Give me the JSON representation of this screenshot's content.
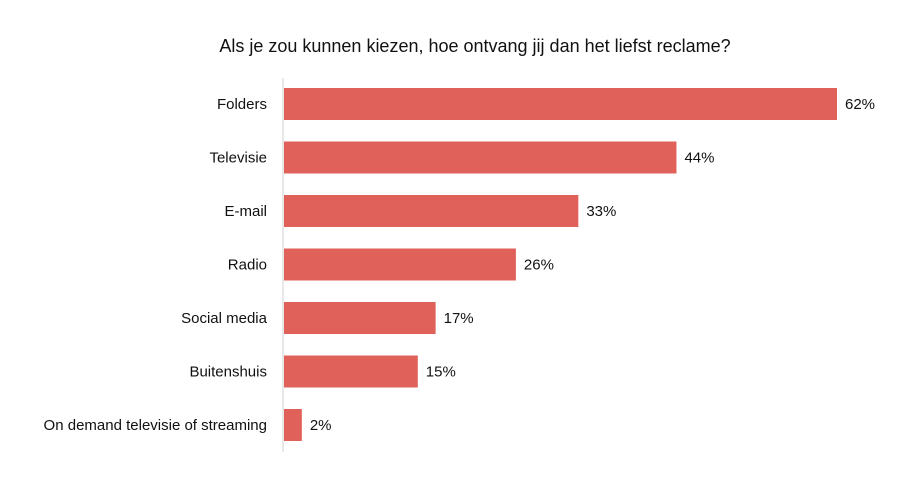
{
  "chart_data": {
    "type": "bar",
    "orientation": "horizontal",
    "title": "Als je zou kunnen kiezen, hoe ontvang jij dan het liefst reclame?",
    "categories": [
      "Folders",
      "Televisie",
      "E-mail",
      "Radio",
      "Social media",
      "Buitenshuis",
      "On demand televisie of streaming"
    ],
    "values": [
      62,
      44,
      33,
      26,
      17,
      15,
      2
    ],
    "value_labels": [
      "62%",
      "44%",
      "33%",
      "26%",
      "17%",
      "15%",
      "2%"
    ],
    "xlim": [
      0,
      62
    ],
    "grid": false,
    "legend": "none",
    "bar_color": "#e0605a",
    "axis_color": "#d0d0d0"
  }
}
